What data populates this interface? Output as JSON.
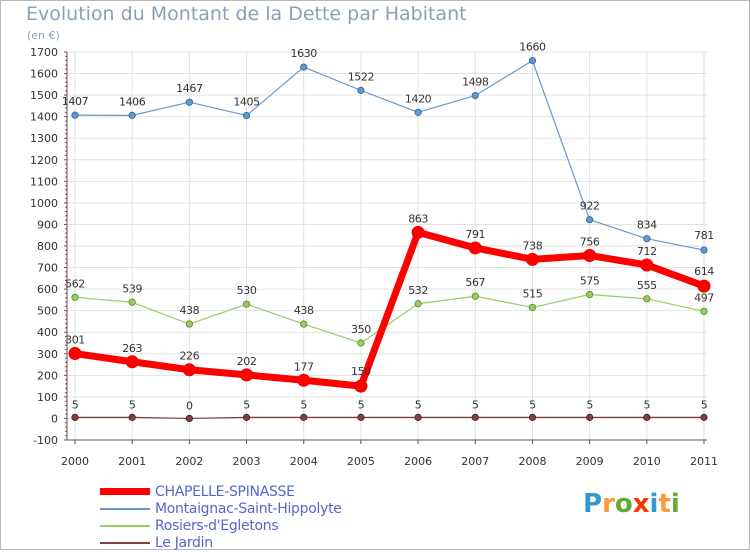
{
  "chart_data": {
    "type": "line",
    "title": "Evolution du Montant de la Dette par Habitant",
    "subtitle": "(en €)",
    "x": [
      "2000",
      "2001",
      "2002",
      "2003",
      "2004",
      "2005",
      "2006",
      "2007",
      "2008",
      "2009",
      "2010",
      "2011"
    ],
    "ylim": [
      -100,
      1700
    ],
    "yticks": [
      -100,
      0,
      100,
      200,
      300,
      400,
      500,
      600,
      700,
      800,
      900,
      1000,
      1100,
      1200,
      1300,
      1400,
      1500,
      1600,
      1700
    ],
    "grid": true,
    "legend_position": "bottom-left",
    "series": [
      {
        "name": "CHAPELLE-SPINASSE",
        "color": "#ff0000",
        "values": [
          301,
          263,
          226,
          202,
          177,
          150,
          863,
          791,
          738,
          756,
          712,
          614
        ]
      },
      {
        "name": "Montaignac-Saint-Hippolyte",
        "color": "#6699cc",
        "values": [
          1407,
          1406,
          1467,
          1405,
          1630,
          1522,
          1420,
          1498,
          1660,
          922,
          834,
          781
        ]
      },
      {
        "name": "Rosiers-d'Egletons",
        "color": "#99cc66",
        "values": [
          562,
          539,
          438,
          530,
          438,
          350,
          532,
          567,
          515,
          575,
          555,
          497
        ]
      },
      {
        "name": "Le Jardin",
        "color": "#804040",
        "values": [
          5,
          5,
          0,
          5,
          5,
          5,
          5,
          5,
          5,
          5,
          5,
          5
        ]
      }
    ]
  },
  "logo": {
    "text": "Proxiti",
    "colors": [
      "#3399cc",
      "#ff9933",
      "#66aa33",
      "#ff3300",
      "#3399cc",
      "#ff9933",
      "#66aa33"
    ]
  }
}
